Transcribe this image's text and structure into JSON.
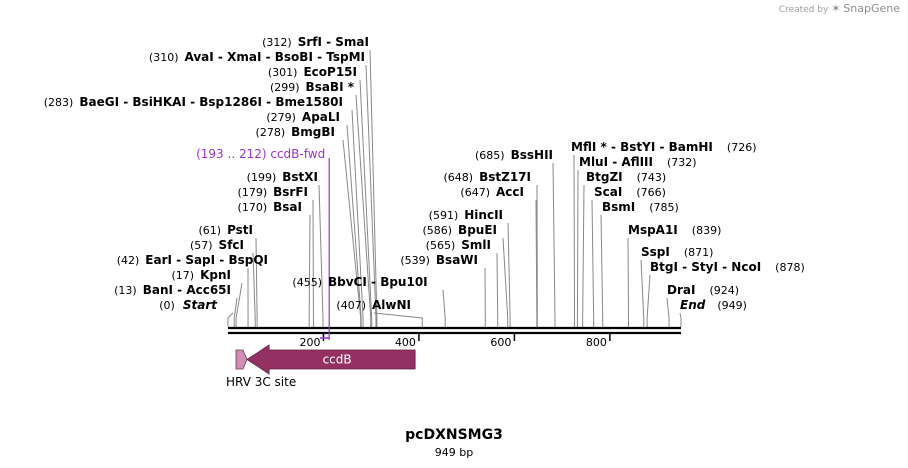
{
  "credit": {
    "prefix": "Created by",
    "brand": "SnapGene"
  },
  "plasmid": {
    "name": "pcDXNSMG3",
    "size_label": "949 bp",
    "length_bp": 949
  },
  "ruler": {
    "ticks": [
      {
        "bp": 200,
        "label": "200"
      },
      {
        "bp": 400,
        "label": "400"
      },
      {
        "bp": 600,
        "label": "600"
      },
      {
        "bp": 800,
        "label": "800"
      }
    ]
  },
  "sites": [
    {
      "id": "start",
      "pos": "(0)",
      "bp": 0,
      "ends": "Start"
    },
    {
      "id": "bani",
      "pos": "(13)",
      "bp": 13,
      "names": [
        "BanI",
        "Acc65I"
      ]
    },
    {
      "id": "kpni",
      "pos": "(17)",
      "bp": 17,
      "names": [
        "KpnI"
      ]
    },
    {
      "id": "eari",
      "pos": "(42)",
      "bp": 42,
      "names": [
        "EarI",
        "SapI",
        "BspQI"
      ]
    },
    {
      "id": "sfci",
      "pos": "(57)",
      "bp": 57,
      "names": [
        "SfcI"
      ]
    },
    {
      "id": "psti",
      "pos": "(61)",
      "bp": 61,
      "names": [
        "PstI"
      ]
    },
    {
      "id": "bsai",
      "pos": "(170)",
      "bp": 170,
      "names": [
        "BsaI"
      ]
    },
    {
      "id": "bsrfi",
      "pos": "(179)",
      "bp": 179,
      "names": [
        "BsrFI"
      ]
    },
    {
      "id": "bstxi",
      "pos": "(199)",
      "bp": 199,
      "names": [
        "BstXI"
      ]
    },
    {
      "id": "bmgbi",
      "pos": "(278)",
      "bp": 278,
      "names": [
        "BmgBI"
      ]
    },
    {
      "id": "apali",
      "pos": "(279)",
      "bp": 279,
      "names": [
        "ApaLI"
      ]
    },
    {
      "id": "baegi",
      "pos": "(283)",
      "bp": 283,
      "names": [
        "BaeGI",
        "BsiHKAI",
        "Bsp1286I",
        "Bme1580I"
      ]
    },
    {
      "id": "bsabi",
      "pos": "(299)",
      "bp": 299,
      "names": [
        "BsaBI *"
      ]
    },
    {
      "id": "ecop15i",
      "pos": "(301)",
      "bp": 301,
      "names": [
        "EcoP15I"
      ]
    },
    {
      "id": "avai",
      "pos": "(310)",
      "bp": 310,
      "names": [
        "AvaI",
        "XmaI",
        "BsoBI",
        "TspMI"
      ]
    },
    {
      "id": "srfi",
      "pos": "(312)",
      "bp": 312,
      "names": [
        "SrfI",
        "SmaI"
      ]
    },
    {
      "id": "alwni",
      "pos": "(407)",
      "bp": 407,
      "names": [
        "AlwNI"
      ]
    },
    {
      "id": "bbvci",
      "pos": "(455)",
      "bp": 455,
      "names": [
        "BbvCI",
        "Bpu10I"
      ]
    },
    {
      "id": "bsawi",
      "pos": "(539)",
      "bp": 539,
      "names": [
        "BsaWI"
      ]
    },
    {
      "id": "smli",
      "pos": "(565)",
      "bp": 565,
      "names": [
        "SmlI"
      ]
    },
    {
      "id": "bpuei",
      "pos": "(586)",
      "bp": 586,
      "names": [
        "BpuEI"
      ]
    },
    {
      "id": "hincii",
      "pos": "(591)",
      "bp": 591,
      "names": [
        "HincII"
      ]
    },
    {
      "id": "acci",
      "pos": "(647)",
      "bp": 647,
      "names": [
        "AccI"
      ]
    },
    {
      "id": "bstz17i",
      "pos": "(648)",
      "bp": 648,
      "names": [
        "BstZ17I"
      ]
    },
    {
      "id": "bsshii",
      "pos": "(685)",
      "bp": 685,
      "names": [
        "BssHII"
      ]
    },
    {
      "id": "mfli",
      "pos": "(726)",
      "bp": 726,
      "names": [
        "MflI *",
        "BstYI",
        "BamHI"
      ]
    },
    {
      "id": "mlui",
      "pos": "(732)",
      "bp": 732,
      "names": [
        "MluI",
        "AflIII"
      ]
    },
    {
      "id": "btgzi",
      "pos": "(743)",
      "bp": 743,
      "names": [
        "BtgZI"
      ]
    },
    {
      "id": "scai",
      "pos": "(766)",
      "bp": 766,
      "names": [
        "ScaI"
      ]
    },
    {
      "id": "bsmi",
      "pos": "(785)",
      "bp": 785,
      "names": [
        "BsmI"
      ]
    },
    {
      "id": "mspa1i",
      "pos": "(839)",
      "bp": 839,
      "names": [
        "MspA1I"
      ]
    },
    {
      "id": "sspi",
      "pos": "(871)",
      "bp": 871,
      "names": [
        "SspI"
      ]
    },
    {
      "id": "btgi",
      "pos": "(878)",
      "bp": 878,
      "names": [
        "BtgI",
        "StyI",
        "NcoI"
      ]
    },
    {
      "id": "drai",
      "pos": "(924)",
      "bp": 924,
      "names": [
        "DraI"
      ]
    },
    {
      "id": "end",
      "pos": "(949)",
      "bp": 949,
      "ends": "End"
    }
  ],
  "primer": {
    "name": "ccdB-fwd",
    "range": "(193 .. 212)",
    "start_bp": 193,
    "end_bp": 212,
    "color": "#9b32c8"
  },
  "features": [
    {
      "id": "hrv",
      "label": "HRV 3C site",
      "start_bp": 0,
      "end_bp": 24,
      "direction": "forward",
      "color": "#cf8fb4"
    },
    {
      "id": "ccdb",
      "label": "ccdB",
      "start_bp": 40,
      "end_bp": 392,
      "direction": "reverse",
      "color": "#933163"
    }
  ],
  "colors": {
    "backbone": "#000000",
    "leader": "#888888"
  }
}
